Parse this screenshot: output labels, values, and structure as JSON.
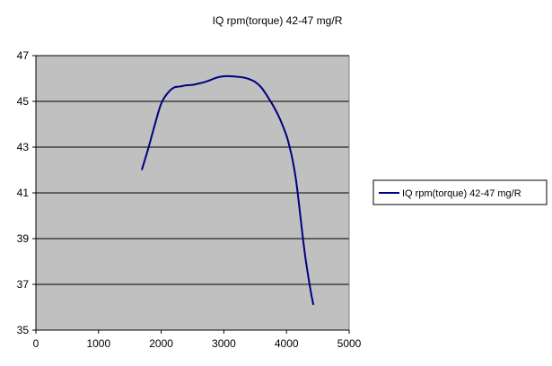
{
  "chart_data": {
    "type": "line",
    "title": "IQ rpm(torque) 42-47   mg/R",
    "xlabel": "",
    "ylabel": "",
    "xlim": [
      0,
      5000
    ],
    "ylim": [
      35,
      47
    ],
    "x_ticks": [
      0,
      1000,
      2000,
      3000,
      4000,
      5000
    ],
    "y_ticks": [
      35,
      37,
      39,
      41,
      43,
      45,
      47
    ],
    "grid": "horizontal",
    "plot_background": "#c0c0c0",
    "legend": {
      "placement": "right"
    },
    "series": [
      {
        "name": "IQ rpm(torque) 42-47   mg/R",
        "color": "#000080",
        "x": [
          1690,
          1800,
          1900,
          2000,
          2100,
          2200,
          2300,
          2400,
          2500,
          2600,
          2700,
          2800,
          2900,
          3000,
          3100,
          3200,
          3300,
          3400,
          3500,
          3600,
          3700,
          3800,
          3900,
          4000,
          4050,
          4100,
          4150,
          4200,
          4250,
          4300,
          4350,
          4400,
          4430
        ],
        "y": [
          42.0,
          43.0,
          44.0,
          44.9,
          45.35,
          45.6,
          45.65,
          45.7,
          45.72,
          45.78,
          45.85,
          45.95,
          46.05,
          46.1,
          46.1,
          46.08,
          46.05,
          45.98,
          45.85,
          45.6,
          45.2,
          44.75,
          44.2,
          43.5,
          43.0,
          42.4,
          41.6,
          40.5,
          39.3,
          38.2,
          37.3,
          36.5,
          36.1
        ]
      }
    ]
  }
}
